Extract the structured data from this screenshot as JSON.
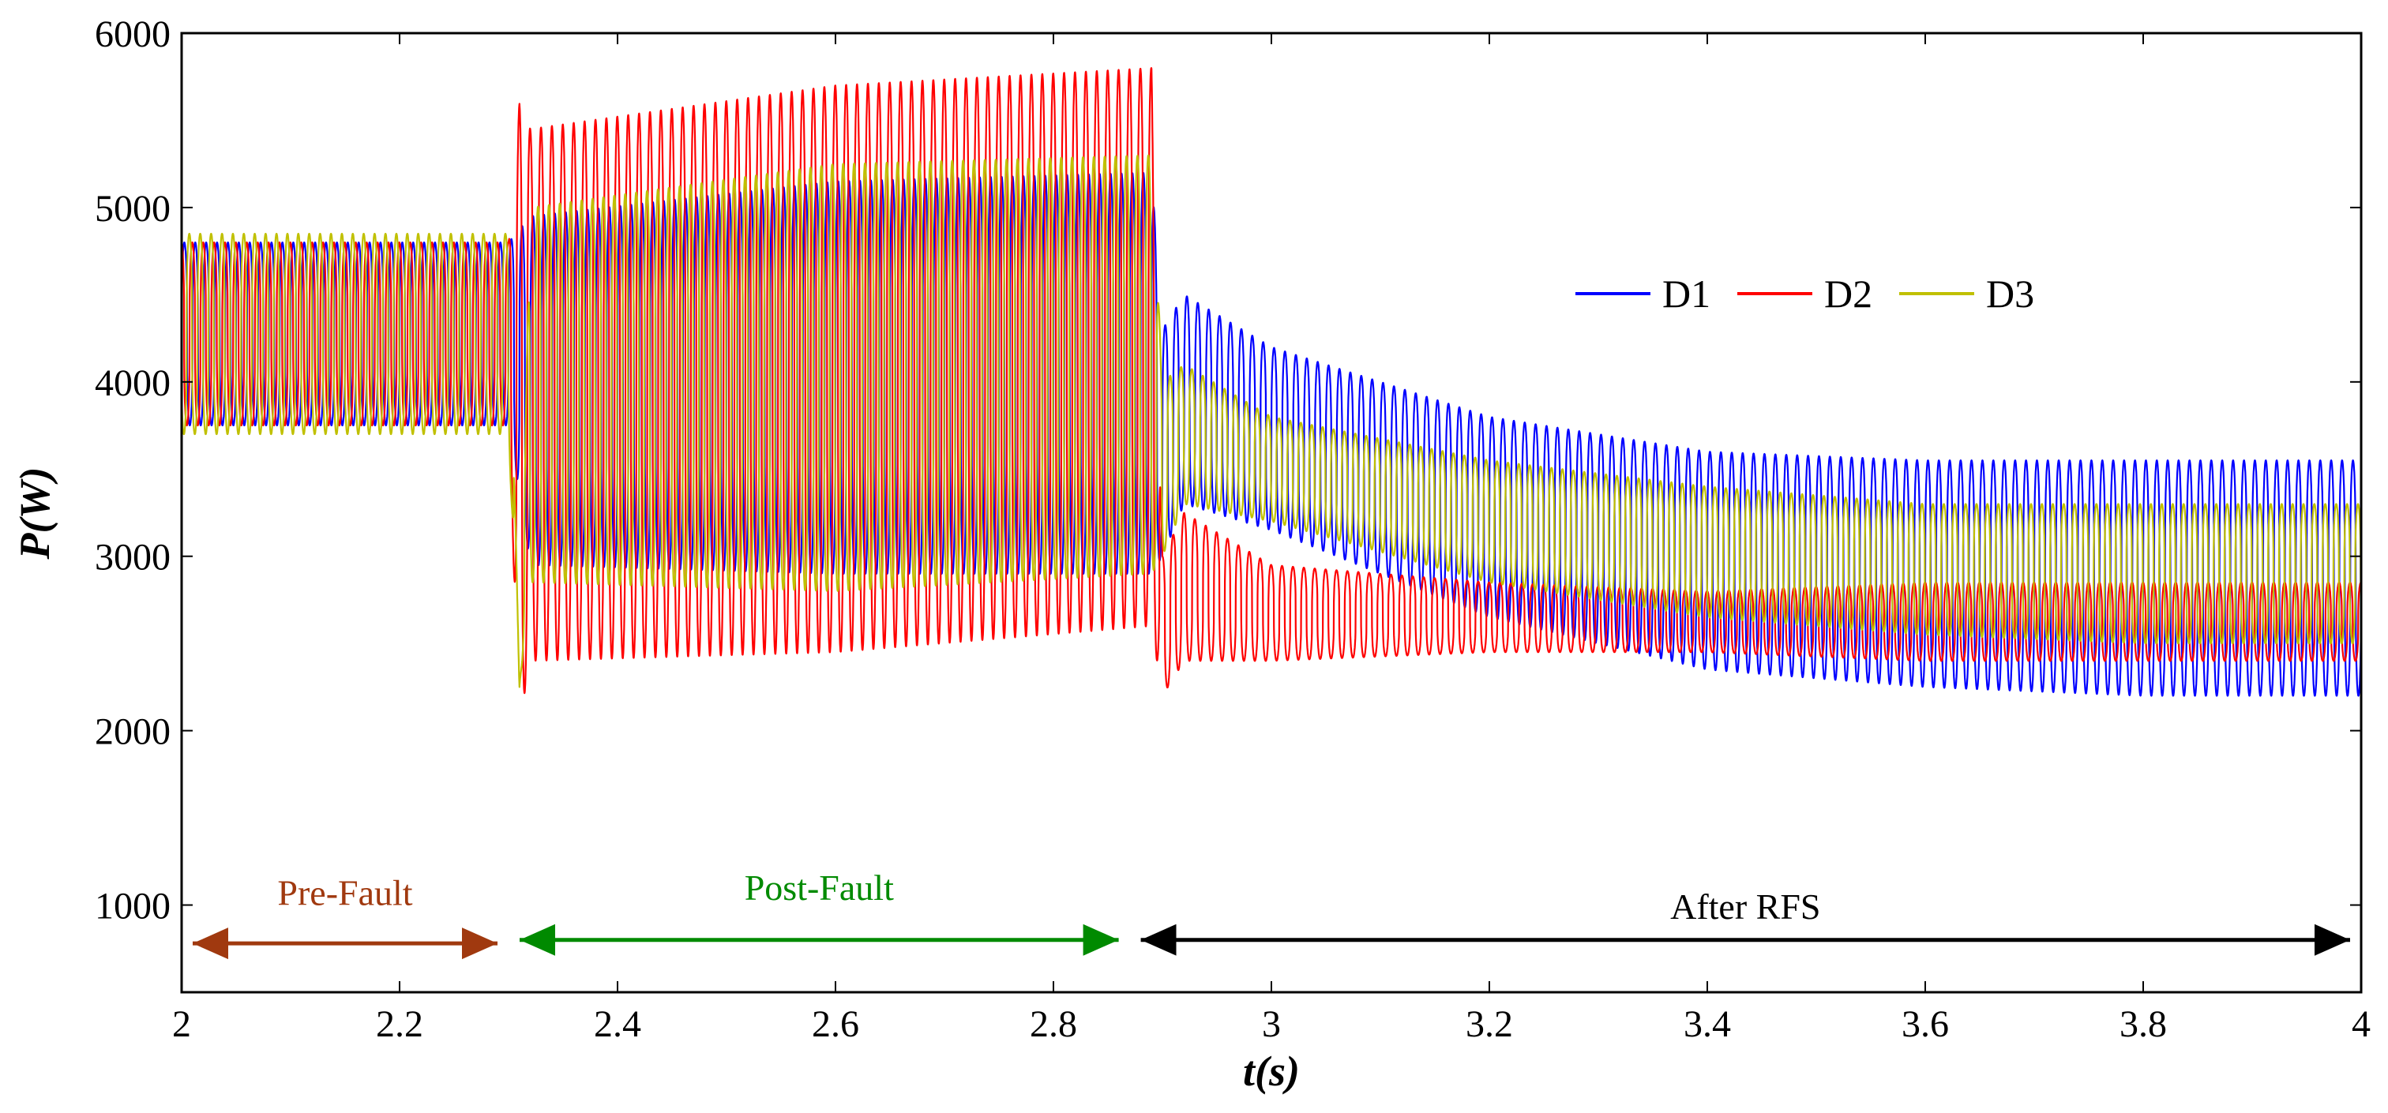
{
  "chart_data": {
    "type": "line",
    "title": "",
    "xlabel": "t(s)",
    "ylabel": "P(W)",
    "xlim": [
      2,
      4
    ],
    "ylim": [
      500,
      6000
    ],
    "xticks": [
      2,
      2.2,
      2.4,
      2.6,
      2.8,
      3,
      3.2,
      3.4,
      3.6,
      3.8,
      4
    ],
    "xtick_labels": [
      "2",
      "2.2",
      "2.4",
      "2.6",
      "2.8",
      "3",
      "3.2",
      "3.4",
      "3.6",
      "3.8",
      "4"
    ],
    "yticks": [
      1000,
      2000,
      3000,
      4000,
      5000,
      6000
    ],
    "ytick_labels": [
      "1000",
      "2000",
      "3000",
      "4000",
      "5000",
      "6000"
    ],
    "grid": false,
    "legend_position": "top-right",
    "oscillation_cycles_per_second": 100,
    "series": [
      {
        "name": "D1",
        "color": "#0000ff",
        "envelope_time": [
          2.0,
          2.3,
          2.32,
          2.6,
          2.89,
          2.9,
          2.92,
          3.0,
          3.2,
          3.4,
          3.6,
          3.8,
          4.0
        ],
        "envelope_max": [
          4800,
          4800,
          4950,
          5150,
          5200,
          4300,
          4500,
          4200,
          3800,
          3600,
          3550,
          3550,
          3550
        ],
        "envelope_min": [
          3750,
          3750,
          2950,
          2900,
          2900,
          3000,
          3300,
          3150,
          2650,
          2350,
          2250,
          2200,
          2200
        ]
      },
      {
        "name": "D2",
        "color": "#ff0000",
        "envelope_time": [
          2.0,
          2.3,
          2.31,
          2.32,
          2.6,
          2.89,
          2.9,
          2.92,
          3.0,
          3.2,
          3.4,
          3.6,
          3.8,
          4.0
        ],
        "envelope_max": [
          4800,
          4800,
          5600,
          5450,
          5700,
          5800,
          3000,
          3250,
          2950,
          2850,
          2800,
          2850,
          2850,
          2850
        ],
        "envelope_min": [
          3750,
          3750,
          2050,
          2400,
          2450,
          2600,
          2200,
          2400,
          2400,
          2450,
          2450,
          2400,
          2400,
          2400
        ]
      },
      {
        "name": "D3",
        "color": "#c0c000",
        "envelope_time": [
          2.0,
          2.3,
          2.31,
          2.32,
          2.6,
          2.89,
          2.9,
          2.92,
          3.0,
          3.2,
          3.4,
          3.6,
          3.8,
          4.0
        ],
        "envelope_max": [
          4850,
          4850,
          2250,
          5000,
          5250,
          5300,
          4000,
          4100,
          3800,
          3550,
          3400,
          3300,
          3300,
          3300
        ],
        "envelope_min": [
          3700,
          3700,
          2250,
          2850,
          2800,
          2900,
          3000,
          3300,
          3200,
          2850,
          2650,
          2550,
          2500,
          2500
        ]
      }
    ],
    "annotations": [
      {
        "label": "Pre-Fault",
        "x_start": 2.0,
        "x_end": 2.3,
        "y": 780,
        "label_y": 1000,
        "color": "#a0390f"
      },
      {
        "label": "Post-Fault",
        "x_start": 2.3,
        "x_end": 2.87,
        "y": 800,
        "label_y": 1030,
        "color": "#008a00"
      },
      {
        "label": "After RFS",
        "x_start": 2.87,
        "x_end": 4.0,
        "y": 800,
        "label_y": 920,
        "color": "#000000"
      }
    ]
  }
}
